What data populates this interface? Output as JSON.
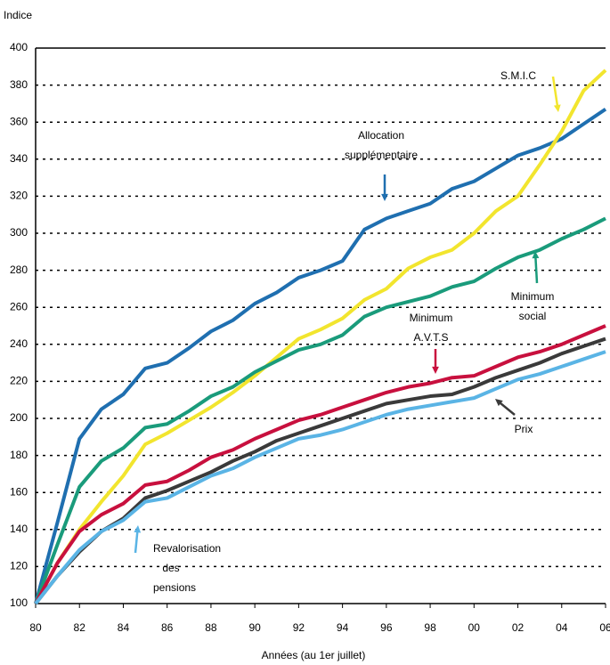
{
  "chart_data": {
    "type": "line",
    "y_label": "Indice",
    "x_label": "Années (au 1er juillet)",
    "x": [
      1980,
      1981,
      1982,
      1983,
      1984,
      1985,
      1986,
      1987,
      1988,
      1989,
      1990,
      1991,
      1992,
      1993,
      1994,
      1995,
      1996,
      1997,
      1998,
      1999,
      2000,
      2001,
      2002,
      2003,
      2004,
      2005,
      2006
    ],
    "series": [
      {
        "name": "Allocation supplémentaire",
        "color": "#1f6fb0",
        "values": [
          100,
          144,
          189,
          205,
          213,
          227,
          230,
          238,
          247,
          253,
          262,
          268,
          276,
          280,
          285,
          302,
          308,
          312,
          316,
          324,
          328,
          335,
          342,
          346,
          351,
          359,
          367
        ]
      },
      {
        "name": "S.M.I.C",
        "color": "#f2e52e",
        "values": [
          100,
          122,
          140,
          155,
          169,
          186,
          192,
          199,
          206,
          214,
          223,
          233,
          243,
          248,
          254,
          264,
          270,
          281,
          287,
          291,
          300,
          312,
          320,
          337,
          355,
          377,
          388
        ]
      },
      {
        "name": "Minimum social",
        "color": "#1a9b7b",
        "values": [
          100,
          132,
          163,
          177,
          184,
          195,
          197,
          204,
          212,
          217,
          225,
          231,
          237,
          240,
          245,
          255,
          260,
          263,
          266,
          271,
          274,
          281,
          287,
          291,
          297,
          302,
          308
        ]
      },
      {
        "name": "Minimum A.V.T.S",
        "color": "#c8103e",
        "values": [
          100,
          122,
          139,
          148,
          154,
          164,
          166,
          172,
          179,
          183,
          189,
          194,
          199,
          202,
          206,
          210,
          214,
          217,
          219,
          222,
          223,
          228,
          233,
          236,
          240,
          245,
          250
        ]
      },
      {
        "name": "Prix",
        "color": "#3a3a3a",
        "values": [
          100,
          115,
          128,
          139,
          146,
          157,
          161,
          166,
          171,
          177,
          182,
          188,
          192,
          196,
          200,
          204,
          208,
          210,
          212,
          213,
          217,
          222,
          226,
          230,
          235,
          239,
          243
        ]
      },
      {
        "name": "Revalorisation des pensions",
        "color": "#5ab4e5",
        "values": [
          100,
          115,
          129,
          139,
          145,
          155,
          157,
          163,
          169,
          173,
          179,
          184,
          189,
          191,
          194,
          198,
          202,
          205,
          207,
          209,
          211,
          216,
          221,
          224,
          228,
          232,
          236
        ]
      }
    ],
    "xlim": [
      1980,
      2006
    ],
    "xticks": [
      {
        "value": 1980,
        "label": "80"
      },
      {
        "value": 1982,
        "label": "82"
      },
      {
        "value": 1984,
        "label": "84"
      },
      {
        "value": 1986,
        "label": "86"
      },
      {
        "value": 1988,
        "label": "88"
      },
      {
        "value": 1990,
        "label": "90"
      },
      {
        "value": 1992,
        "label": "92"
      },
      {
        "value": 1994,
        "label": "94"
      },
      {
        "value": 1996,
        "label": "96"
      },
      {
        "value": 1998,
        "label": "98"
      },
      {
        "value": 2000,
        "label": "00"
      },
      {
        "value": 2002,
        "label": "02"
      },
      {
        "value": 2004,
        "label": "04"
      },
      {
        "value": 2006,
        "label": "06"
      }
    ],
    "ylim": [
      100,
      400
    ],
    "yticks": [
      100,
      120,
      140,
      160,
      180,
      200,
      220,
      240,
      260,
      280,
      300,
      320,
      340,
      360,
      380,
      400
    ],
    "grid": true
  }
}
